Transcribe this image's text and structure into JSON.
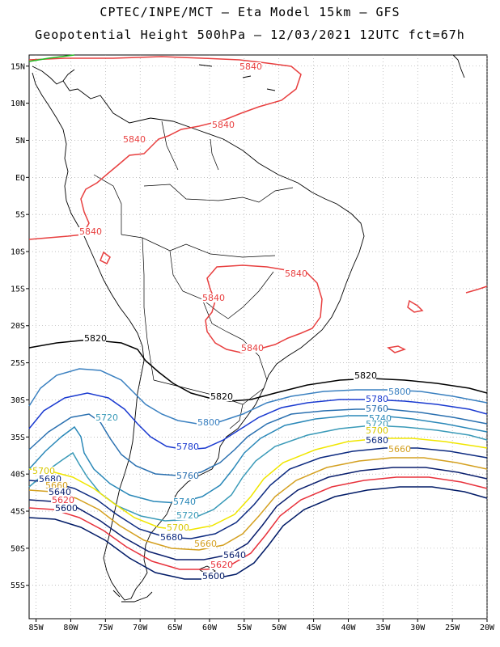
{
  "header": {
    "line1": "CPTEC/INPE/MCT –  Eta Model 15km – GFS",
    "line2": "Geopotential Height 500hPa – 12/03/2021 12UTC fct=67h"
  },
  "axes": {
    "lat_labels": [
      "15N",
      "10N",
      "5N",
      "EQ",
      "5S",
      "10S",
      "15S",
      "20S",
      "25S",
      "30S",
      "35S",
      "40S",
      "45S",
      "50S",
      "55S"
    ],
    "lon_labels": [
      "85W",
      "80W",
      "75W",
      "70W",
      "65W",
      "60W",
      "55W",
      "50W",
      "45W",
      "40W",
      "35W",
      "30W",
      "25W",
      "20W"
    ],
    "grid": "dotted"
  },
  "contour_colors": {
    "5600": "#001a66",
    "5620": "#e8323c",
    "5640": "#0a1f6e",
    "5660": "#d4a020",
    "5680": "#0c2a80",
    "5700": "#f0e600",
    "5720": "#3a9ab8",
    "5740": "#2a88b8",
    "5760": "#2a70b0",
    "5780": "#1a3ad0",
    "5800": "#3a80c0",
    "5820": "#000000",
    "5840": "#e84040"
  },
  "contour_labels": [
    {
      "text": "5840",
      "color": "#e84040"
    },
    {
      "text": "5840",
      "color": "#e84040"
    },
    {
      "text": "5840",
      "color": "#e84040"
    },
    {
      "text": "5840",
      "color": "#e84040"
    },
    {
      "text": "5840",
      "color": "#e84040"
    },
    {
      "text": "5840",
      "color": "#e84040"
    },
    {
      "text": "5840",
      "color": "#e84040"
    },
    {
      "text": "5820",
      "color": "#000000"
    },
    {
      "text": "5820",
      "color": "#000000"
    },
    {
      "text": "5820",
      "color": "#000000"
    },
    {
      "text": "5800",
      "color": "#3a80c0"
    },
    {
      "text": "5800",
      "color": "#3a80c0"
    },
    {
      "text": "5780",
      "color": "#1a3ad0"
    },
    {
      "text": "5780",
      "color": "#1a3ad0"
    },
    {
      "text": "5760",
      "color": "#2a70b0"
    },
    {
      "text": "5760",
      "color": "#2a70b0"
    },
    {
      "text": "5740",
      "color": "#2a88b8"
    },
    {
      "text": "5740",
      "color": "#2a88b8"
    },
    {
      "text": "5720",
      "color": "#3a9ab8"
    },
    {
      "text": "5720",
      "color": "#3a9ab8"
    },
    {
      "text": "5720",
      "color": "#3a9ab8"
    },
    {
      "text": "5700",
      "color": "#d8c800"
    },
    {
      "text": "5700",
      "color": "#d8c800"
    },
    {
      "text": "5700",
      "color": "#d8c800"
    },
    {
      "text": "5680",
      "color": "#0c2a80"
    },
    {
      "text": "5680",
      "color": "#0c2a80"
    },
    {
      "text": "5680",
      "color": "#0c2a80"
    },
    {
      "text": "5660",
      "color": "#d4a020"
    },
    {
      "text": "5660",
      "color": "#d4a020"
    },
    {
      "text": "5660",
      "color": "#d4a020"
    },
    {
      "text": "5640",
      "color": "#0a1f6e"
    },
    {
      "text": "5640",
      "color": "#0a1f6e"
    },
    {
      "text": "5620",
      "color": "#e8323c"
    },
    {
      "text": "5620",
      "color": "#e8323c"
    },
    {
      "text": "5600",
      "color": "#001a66"
    },
    {
      "text": "5600",
      "color": "#001a66"
    }
  ]
}
